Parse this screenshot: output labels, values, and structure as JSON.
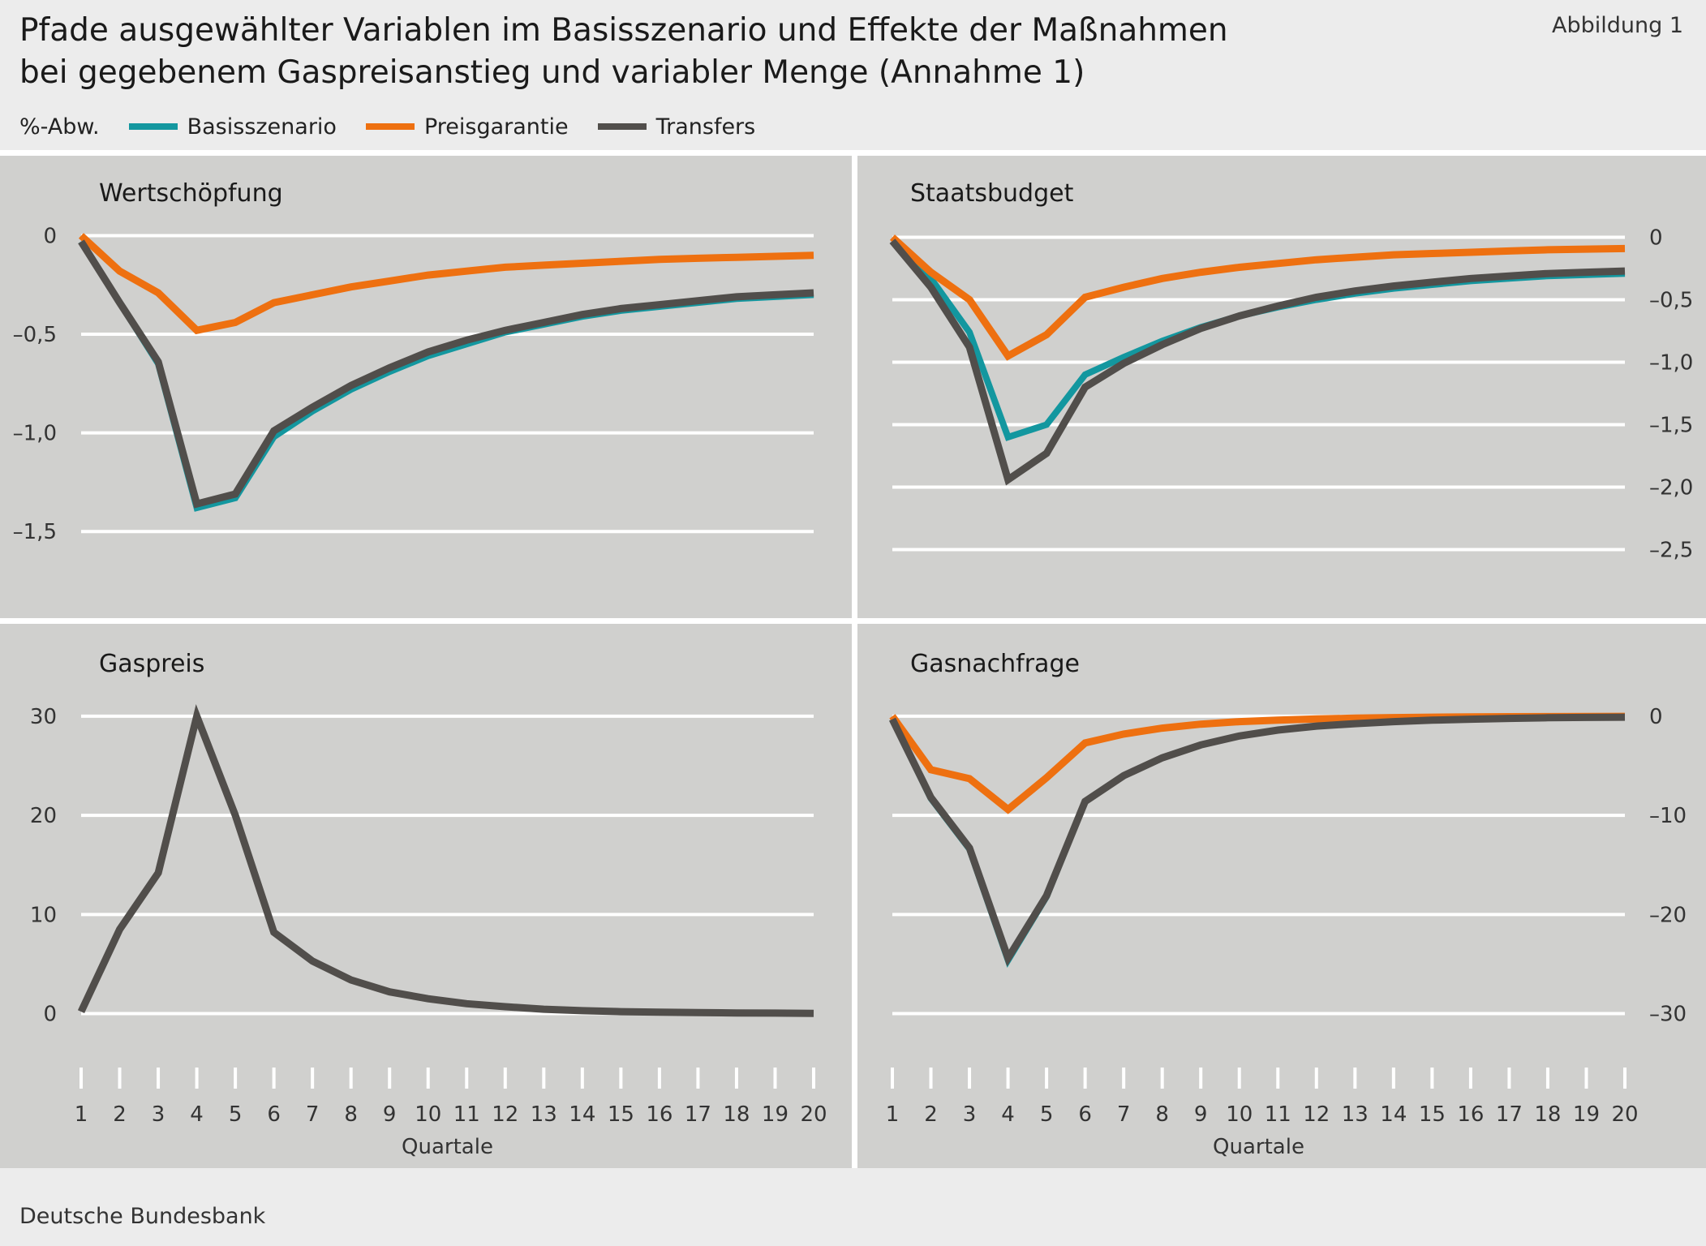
{
  "header": {
    "title_line1": "Pfade ausgewählter Variablen im Basisszenario und Effekte der Maßnahmen",
    "title_line2": "bei gegebenem Gaspreisanstieg und variabler Menge (Annahme 1)",
    "figure_label": "Abbildung 1"
  },
  "legend": {
    "unit": "%-Abw.",
    "items": [
      {
        "label": "Basisszenario",
        "color": "#13979f"
      },
      {
        "label": "Preisgarantie",
        "color": "#ee7010"
      },
      {
        "label": "Transfers",
        "color": "#514e4b"
      }
    ]
  },
  "footer": {
    "source": "Deutsche Bundesbank"
  },
  "chart_data": [
    {
      "type": "line",
      "title": "Wertschöpfung",
      "xlabel": "",
      "ylabel": "",
      "y_axis_side": "left",
      "ylim": [
        -1.75,
        0.15
      ],
      "yticks": [
        0,
        -0.5,
        -1.0,
        -1.5
      ],
      "ytick_labels": [
        "0",
        "–0,5",
        "–1,0",
        "–1,5"
      ],
      "x": [
        1,
        2,
        3,
        4,
        5,
        6,
        7,
        8,
        9,
        10,
        11,
        12,
        13,
        14,
        15,
        16,
        17,
        18,
        19,
        20
      ],
      "xticks_visible": false,
      "series": [
        {
          "name": "Basisszenario",
          "values": [
            -0.03,
            -0.34,
            -0.65,
            -1.38,
            -1.33,
            -1.02,
            -0.89,
            -0.78,
            -0.69,
            -0.61,
            -0.55,
            -0.49,
            -0.45,
            -0.41,
            -0.38,
            -0.36,
            -0.34,
            -0.32,
            -0.31,
            -0.3
          ]
        },
        {
          "name": "Preisgarantie",
          "values": [
            0.0,
            -0.18,
            -0.29,
            -0.48,
            -0.44,
            -0.34,
            -0.3,
            -0.26,
            -0.23,
            -0.2,
            -0.18,
            -0.16,
            -0.15,
            -0.14,
            -0.13,
            -0.12,
            -0.115,
            -0.11,
            -0.105,
            -0.1
          ]
        },
        {
          "name": "Transfers",
          "values": [
            -0.03,
            -0.34,
            -0.64,
            -1.36,
            -1.31,
            -0.99,
            -0.87,
            -0.76,
            -0.67,
            -0.59,
            -0.53,
            -0.48,
            -0.44,
            -0.4,
            -0.37,
            -0.35,
            -0.33,
            -0.31,
            -0.3,
            -0.29
          ]
        }
      ]
    },
    {
      "type": "line",
      "title": "Staatsbudget",
      "xlabel": "",
      "ylabel": "",
      "y_axis_side": "right",
      "ylim": [
        -2.75,
        0.25
      ],
      "yticks": [
        0,
        -0.5,
        -1.0,
        -1.5,
        -2.0,
        -2.5
      ],
      "ytick_labels": [
        "0",
        "–0,5",
        "–1,0",
        "–1,5",
        "–2,0",
        "–2,5"
      ],
      "x": [
        1,
        2,
        3,
        4,
        5,
        6,
        7,
        8,
        9,
        10,
        11,
        12,
        13,
        14,
        15,
        16,
        17,
        18,
        19,
        20
      ],
      "xticks_visible": false,
      "series": [
        {
          "name": "Basisszenario",
          "values": [
            -0.03,
            -0.33,
            -0.76,
            -1.6,
            -1.5,
            -1.1,
            -0.96,
            -0.83,
            -0.72,
            -0.63,
            -0.56,
            -0.5,
            -0.45,
            -0.41,
            -0.38,
            -0.35,
            -0.33,
            -0.31,
            -0.3,
            -0.29
          ]
        },
        {
          "name": "Preisgarantie",
          "values": [
            0.0,
            -0.28,
            -0.5,
            -0.95,
            -0.78,
            -0.48,
            -0.4,
            -0.33,
            -0.28,
            -0.24,
            -0.21,
            -0.18,
            -0.16,
            -0.14,
            -0.13,
            -0.12,
            -0.11,
            -0.1,
            -0.095,
            -0.09
          ]
        },
        {
          "name": "Transfers",
          "values": [
            -0.03,
            -0.4,
            -0.88,
            -1.94,
            -1.73,
            -1.2,
            -1.01,
            -0.86,
            -0.73,
            -0.63,
            -0.55,
            -0.48,
            -0.43,
            -0.39,
            -0.36,
            -0.33,
            -0.31,
            -0.29,
            -0.28,
            -0.27
          ]
        }
      ]
    },
    {
      "type": "line",
      "title": "Gaspreis",
      "xlabel": "Quartale",
      "ylabel": "",
      "y_axis_side": "left",
      "ylim": [
        -3.8,
        34
      ],
      "yticks": [
        0,
        10,
        20,
        30
      ],
      "ytick_labels": [
        "0",
        "10",
        "20",
        "30"
      ],
      "x": [
        1,
        2,
        3,
        4,
        5,
        6,
        7,
        8,
        9,
        10,
        11,
        12,
        13,
        14,
        15,
        16,
        17,
        18,
        19,
        20
      ],
      "xticks_visible": true,
      "series": [
        {
          "name": "Transfers",
          "values": [
            0.2,
            8.5,
            14.2,
            30.0,
            20.0,
            8.2,
            5.3,
            3.4,
            2.2,
            1.5,
            1.0,
            0.7,
            0.45,
            0.3,
            0.2,
            0.14,
            0.1,
            0.07,
            0.05,
            0.03
          ]
        }
      ]
    },
    {
      "type": "line",
      "title": "Gasnachfrage",
      "xlabel": "Quartale",
      "ylabel": "",
      "y_axis_side": "right",
      "ylim": [
        -33.8,
        4
      ],
      "yticks": [
        0,
        -10,
        -20,
        -30
      ],
      "ytick_labels": [
        "0",
        "–10",
        "–20",
        "–30"
      ],
      "x": [
        1,
        2,
        3,
        4,
        5,
        6,
        7,
        8,
        9,
        10,
        11,
        12,
        13,
        14,
        15,
        16,
        17,
        18,
        19,
        20
      ],
      "xticks_visible": true,
      "series": [
        {
          "name": "Basisszenario",
          "values": [
            -0.3,
            -8.3,
            -13.4,
            -24.6,
            -18.2,
            -8.6,
            -6.0,
            -4.2,
            -2.9,
            -2.0,
            -1.4,
            -1.0,
            -0.75,
            -0.55,
            -0.4,
            -0.3,
            -0.22,
            -0.16,
            -0.12,
            -0.1
          ]
        },
        {
          "name": "Preisgarantie",
          "values": [
            0.0,
            -5.4,
            -6.3,
            -9.4,
            -6.2,
            -2.7,
            -1.8,
            -1.2,
            -0.8,
            -0.55,
            -0.4,
            -0.28,
            -0.2,
            -0.14,
            -0.1,
            -0.07,
            -0.05,
            -0.04,
            -0.03,
            -0.02
          ]
        },
        {
          "name": "Transfers",
          "values": [
            -0.3,
            -8.2,
            -13.3,
            -24.4,
            -18.1,
            -8.6,
            -6.0,
            -4.2,
            -2.9,
            -2.0,
            -1.4,
            -1.0,
            -0.75,
            -0.55,
            -0.4,
            -0.3,
            -0.22,
            -0.16,
            -0.12,
            -0.1
          ]
        }
      ]
    }
  ]
}
